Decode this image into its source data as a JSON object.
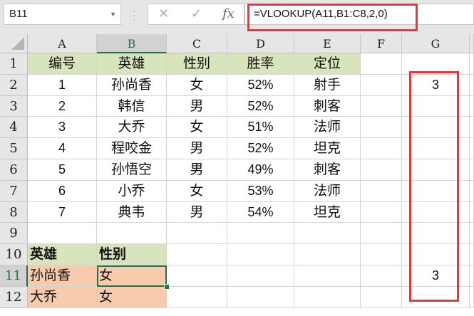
{
  "name_box": "B11",
  "formula": "=VLOOKUP(A11,B1:C8,2,0)",
  "icons": {
    "cancel": "✕",
    "enter": "✓",
    "fx": "fx"
  },
  "columns": [
    "A",
    "B",
    "C",
    "D",
    "E",
    "F",
    "G"
  ],
  "rows": [
    "1",
    "2",
    "3",
    "4",
    "5",
    "6",
    "7",
    "8",
    "9",
    "10",
    "11",
    "12"
  ],
  "table_header": [
    "编号",
    "英雄",
    "性别",
    "胜率",
    "定位"
  ],
  "table_rows": [
    [
      "1",
      "孙尚香",
      "女",
      "52%",
      "射手"
    ],
    [
      "2",
      "韩信",
      "男",
      "52%",
      "刺客"
    ],
    [
      "3",
      "大乔",
      "女",
      "51%",
      "法师"
    ],
    [
      "4",
      "程咬金",
      "男",
      "52%",
      "坦克"
    ],
    [
      "5",
      "孙悟空",
      "男",
      "49%",
      "刺客"
    ],
    [
      "6",
      "小乔",
      "女",
      "53%",
      "法师"
    ],
    [
      "7",
      "典韦",
      "男",
      "54%",
      "坦克"
    ]
  ],
  "lookup_header": [
    "英雄",
    "性别"
  ],
  "lookup_rows": [
    [
      "孙尚香",
      "女"
    ],
    [
      "大乔",
      "女"
    ]
  ],
  "g_values": {
    "G2": "3",
    "G11": "3"
  },
  "colors": {
    "header_fill": "#d8e4bc",
    "lookup_fill": "#f8cbad",
    "highlight": "#e0393e",
    "selection": "#217346"
  }
}
